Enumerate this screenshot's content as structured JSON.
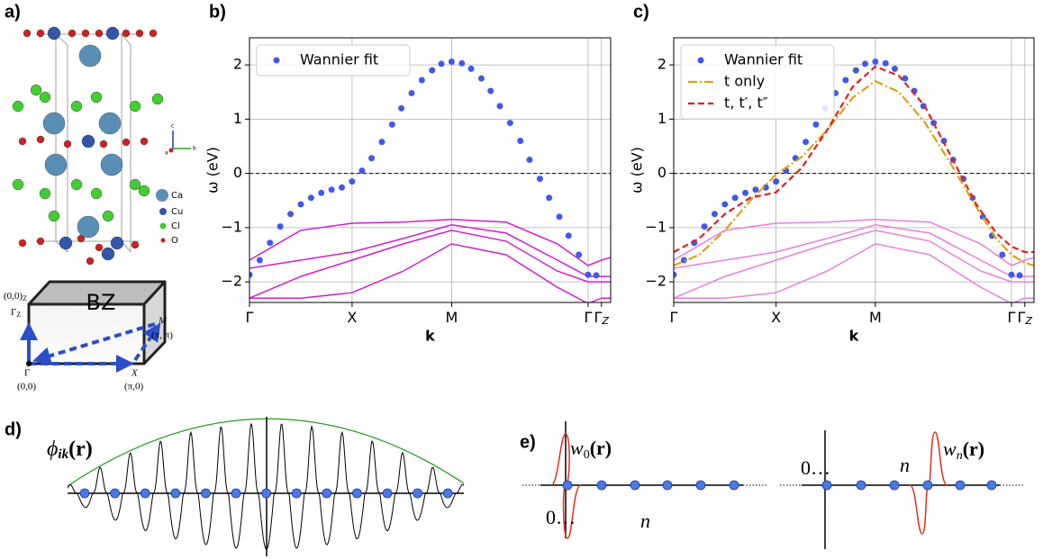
{
  "panel_labels": [
    "a)",
    "b)",
    "c)",
    "d)",
    "e)"
  ],
  "crystal": {
    "legend": [
      "Ca",
      "Cu",
      "Cl",
      "O"
    ],
    "axes": [
      "c",
      "a",
      "b"
    ]
  },
  "bz": {
    "label": "BZ",
    "gamma_z": {
      "coord": "(0,0)",
      "coord_sub": "Z",
      "main": "Γ",
      "sub": "Z"
    },
    "m": {
      "label": "M",
      "coord": "(π, π)"
    },
    "gamma": {
      "label": "Γ",
      "coord": "(0,0)"
    },
    "x": {
      "label": "X",
      "coord": "(π,0)"
    }
  },
  "chart_data": [
    {
      "type": "line",
      "axis_label_x": "k",
      "axis_label_y": "ω (eV)",
      "xlim": [
        0,
        3.52
      ],
      "ylim": [
        -2.38,
        2.5
      ],
      "xticks": [
        {
          "value": 0,
          "label": "Γ"
        },
        {
          "value": 1,
          "label": "X"
        },
        {
          "value": 1.97,
          "label": "M"
        },
        {
          "value": 3.3,
          "label": "Γ"
        },
        {
          "value": 3.43,
          "label": "Γ",
          "sub": "Z"
        }
      ],
      "yticks": [
        {
          "value": -2,
          "label": "−2"
        },
        {
          "value": -1,
          "label": "−1"
        },
        0,
        1,
        2
      ],
      "grid": true,
      "reference_line": 0,
      "legend": "upper left",
      "series": [
        {
          "color": "#d21ed2",
          "style": "solid",
          "x": [
            0,
            0.5,
            1,
            1.5,
            1.97,
            2.5,
            3.0,
            3.3,
            3.43,
            3.52
          ],
          "values": [
            -1.6,
            -1.05,
            -0.92,
            -0.9,
            -0.85,
            -0.9,
            -1.3,
            -1.7,
            -1.6,
            -1.55
          ]
        },
        {
          "color": "#d21ed2",
          "style": "solid",
          "x": [
            0,
            0.5,
            1,
            1.5,
            1.97,
            2.5,
            3.0,
            3.3,
            3.43,
            3.52
          ],
          "values": [
            -1.75,
            -1.6,
            -1.45,
            -1.2,
            -0.95,
            -1.1,
            -1.6,
            -1.9,
            -1.9,
            -1.9
          ]
        },
        {
          "color": "#d21ed2",
          "style": "solid",
          "x": [
            0,
            0.5,
            1,
            1.5,
            1.97,
            2.5,
            3.0,
            3.3,
            3.43,
            3.52
          ],
          "values": [
            -2.3,
            -1.9,
            -1.6,
            -1.3,
            -1.05,
            -1.25,
            -1.8,
            -2.0,
            -2.0,
            -2.0
          ]
        },
        {
          "color": "#d21ed2",
          "style": "solid",
          "x": [
            0,
            0.5,
            1,
            1.5,
            1.97,
            2.5,
            3.0,
            3.3,
            3.43,
            3.52
          ],
          "values": [
            -2.3,
            -2.3,
            -2.2,
            -1.8,
            -1.3,
            -1.5,
            -2.1,
            -2.4,
            -2.3,
            -2.3
          ]
        },
        {
          "name": "Wannier fit",
          "color": "#3f5ae8",
          "style": "dots",
          "x": [
            0,
            0.1,
            0.2,
            0.3,
            0.4,
            0.5,
            0.6,
            0.7,
            0.8,
            0.9,
            1.0,
            1.097,
            1.19,
            1.29,
            1.39,
            1.48,
            1.58,
            1.68,
            1.78,
            1.87,
            1.97,
            2.07,
            2.16,
            2.26,
            2.35,
            2.44,
            2.54,
            2.64,
            2.73,
            2.83,
            2.92,
            3.02,
            3.11,
            3.21,
            3.3,
            3.38
          ],
          "values": [
            -1.87,
            -1.6,
            -1.28,
            -0.98,
            -0.75,
            -0.57,
            -0.45,
            -0.36,
            -0.3,
            -0.26,
            -0.15,
            0.05,
            0.28,
            0.58,
            0.9,
            1.2,
            1.48,
            1.72,
            1.9,
            2.02,
            2.06,
            2.03,
            1.93,
            1.75,
            1.52,
            1.24,
            0.93,
            0.6,
            0.25,
            -0.1,
            -0.45,
            -0.8,
            -1.15,
            -1.5,
            -1.87,
            -1.88
          ]
        }
      ]
    },
    {
      "type": "line",
      "axis_label_x": "k",
      "axis_label_y": "ω (eV)",
      "xlim": [
        0,
        3.52
      ],
      "ylim": [
        -2.38,
        2.5
      ],
      "xticks": [
        {
          "value": 0,
          "label": "Γ"
        },
        {
          "value": 1,
          "label": "X"
        },
        {
          "value": 1.97,
          "label": "M"
        },
        {
          "value": 3.3,
          "label": "Γ"
        },
        {
          "value": 3.43,
          "label": "Γ",
          "sub": "Z"
        }
      ],
      "yticks": [
        {
          "value": -2,
          "label": "−2"
        },
        {
          "value": -1,
          "label": "−1"
        },
        0,
        1,
        2
      ],
      "grid": true,
      "reference_line": 0,
      "legend": "upper left",
      "series": [
        {
          "color": "#e87fe0",
          "style": "solid",
          "x": [
            0,
            0.5,
            1,
            1.5,
            1.97,
            2.5,
            3.0,
            3.3,
            3.43,
            3.52
          ],
          "values": [
            -1.6,
            -1.05,
            -0.92,
            -0.9,
            -0.85,
            -0.9,
            -1.3,
            -1.7,
            -1.6,
            -1.55
          ]
        },
        {
          "color": "#e87fe0",
          "style": "solid",
          "x": [
            0,
            0.5,
            1,
            1.5,
            1.97,
            2.5,
            3.0,
            3.3,
            3.43,
            3.52
          ],
          "values": [
            -1.75,
            -1.6,
            -1.45,
            -1.2,
            -0.95,
            -1.1,
            -1.6,
            -1.9,
            -1.9,
            -1.9
          ]
        },
        {
          "color": "#e87fe0",
          "style": "solid",
          "x": [
            0,
            0.5,
            1,
            1.5,
            1.97,
            2.5,
            3.0,
            3.3,
            3.43,
            3.52
          ],
          "values": [
            -2.3,
            -1.9,
            -1.6,
            -1.3,
            -1.05,
            -1.25,
            -1.8,
            -2.0,
            -2.0,
            -2.0
          ]
        },
        {
          "color": "#e87fe0",
          "style": "solid",
          "x": [
            0,
            0.5,
            1,
            1.5,
            1.97,
            2.5,
            3.0,
            3.3,
            3.43,
            3.52
          ],
          "values": [
            -2.3,
            -2.3,
            -2.2,
            -1.8,
            -1.3,
            -1.5,
            -2.1,
            -2.4,
            -2.3,
            -2.3
          ]
        },
        {
          "name": "Wannier fit",
          "color": "#3f5ae8",
          "style": "dots",
          "x": [
            0,
            0.1,
            0.2,
            0.3,
            0.4,
            0.5,
            0.6,
            0.7,
            0.8,
            0.9,
            1.0,
            1.097,
            1.19,
            1.29,
            1.39,
            1.48,
            1.58,
            1.68,
            1.78,
            1.87,
            1.97,
            2.07,
            2.16,
            2.26,
            2.35,
            2.44,
            2.54,
            2.64,
            2.73,
            2.83,
            2.92,
            3.02,
            3.11,
            3.21,
            3.3,
            3.38
          ],
          "values": [
            -1.87,
            -1.6,
            -1.28,
            -0.98,
            -0.75,
            -0.57,
            -0.45,
            -0.36,
            -0.3,
            -0.26,
            -0.15,
            0.05,
            0.28,
            0.58,
            0.9,
            1.2,
            1.48,
            1.72,
            1.9,
            2.02,
            2.06,
            2.03,
            1.93,
            1.75,
            1.52,
            1.24,
            0.93,
            0.6,
            0.25,
            -0.1,
            -0.45,
            -0.8,
            -1.15,
            -1.5,
            -1.87,
            -1.88
          ]
        },
        {
          "name": "t only",
          "color": "#e0a010",
          "style": "dashdot",
          "x": [
            0,
            0.25,
            0.5,
            0.75,
            1,
            1.25,
            1.5,
            1.75,
            1.97,
            2.2,
            2.45,
            2.7,
            2.95,
            3.15,
            3.3,
            3.43,
            3.52
          ],
          "values": [
            -1.7,
            -1.5,
            -1.05,
            -0.5,
            -0.02,
            0.3,
            0.8,
            1.4,
            1.7,
            1.5,
            0.95,
            0.2,
            -0.6,
            -1.2,
            -1.5,
            -1.65,
            -1.7
          ]
        },
        {
          "name": "t, t′, t″",
          "color": "#e02020",
          "style": "dashed",
          "x": [
            0,
            0.25,
            0.5,
            0.75,
            1,
            1.25,
            1.5,
            1.75,
            1.97,
            2.2,
            2.45,
            2.7,
            2.95,
            3.15,
            3.3,
            3.43,
            3.52
          ],
          "values": [
            -1.45,
            -1.2,
            -0.75,
            -0.45,
            -0.35,
            0.1,
            0.8,
            1.6,
            1.97,
            1.8,
            1.25,
            0.35,
            -0.55,
            -1.1,
            -1.35,
            -1.45,
            -1.45
          ]
        }
      ]
    }
  ],
  "bloch": {
    "label": {
      "main": "ϕ",
      "sub": "ik",
      "arg": "(r)"
    }
  },
  "wannier": {
    "left": {
      "label": {
        "main": "w",
        "sub": "0",
        "arg": "(r)"
      },
      "origin": "0…",
      "site": "n"
    },
    "right": {
      "label": {
        "main": "w",
        "sub": "n",
        "arg": "(r)"
      },
      "origin": "0…",
      "site": "n"
    }
  }
}
